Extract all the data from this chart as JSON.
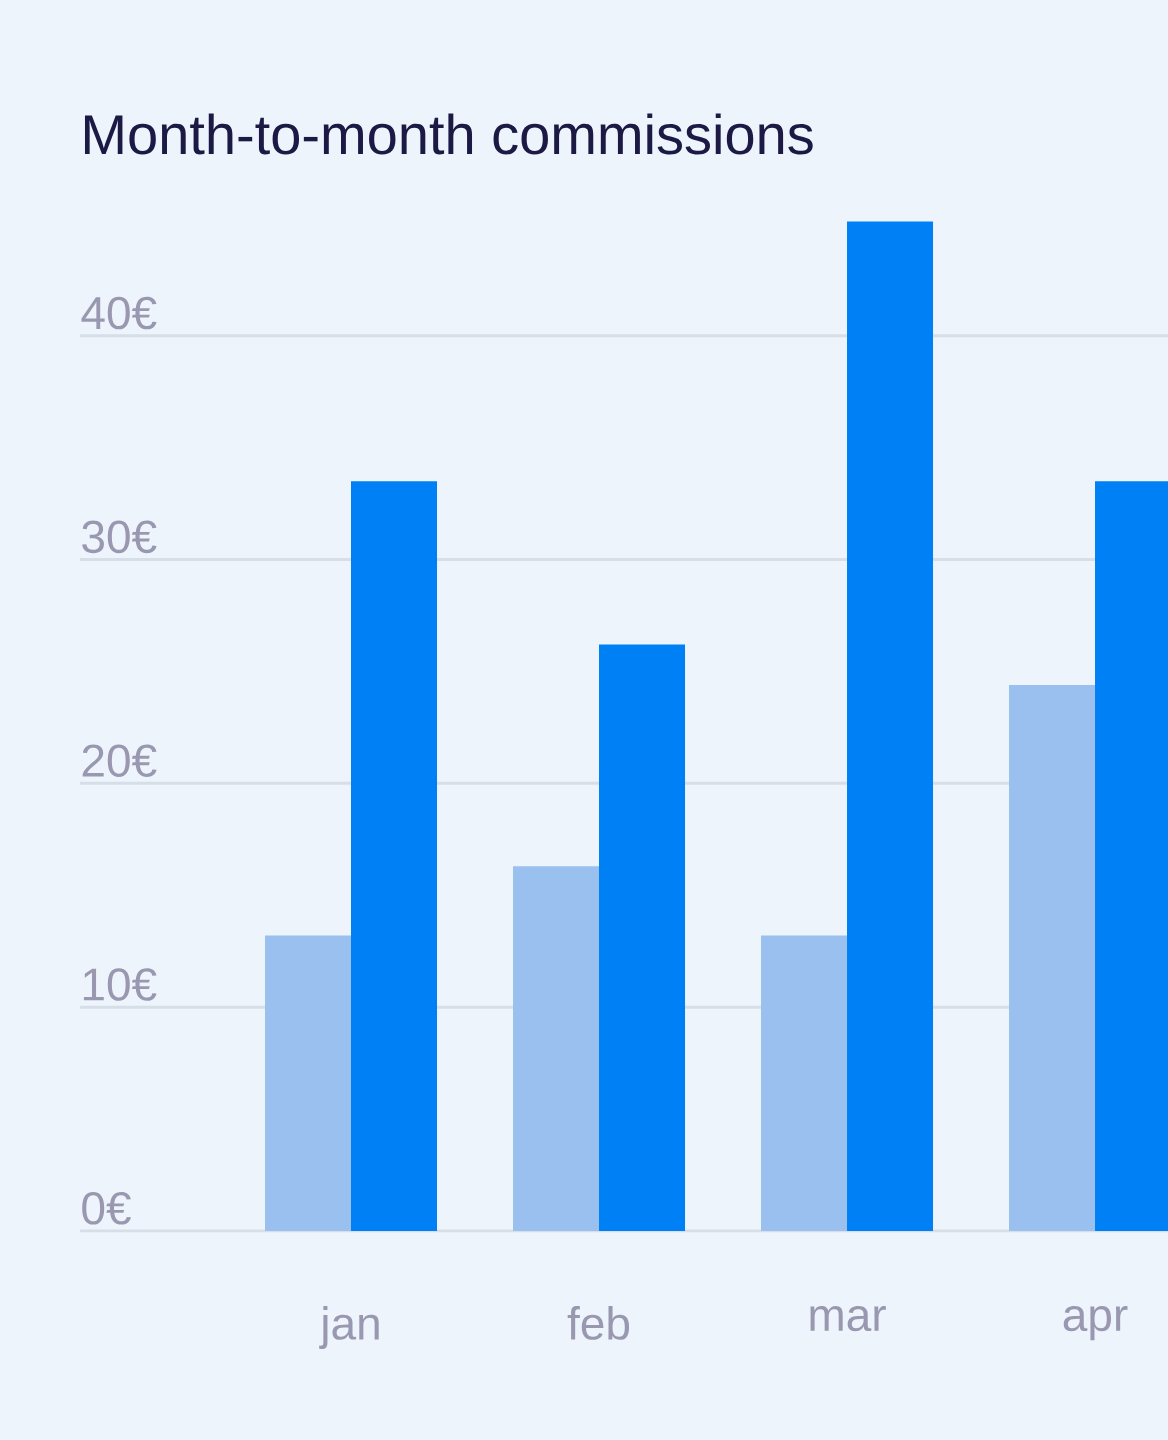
{
  "chart_data": {
    "type": "bar",
    "title": "Month-to-month commissions",
    "categories": [
      "jan",
      "feb",
      "mar",
      "apr"
    ],
    "series": [
      {
        "color": "#99c0ee",
        "values": [
          13.2,
          16.3,
          13.2,
          24.4
        ]
      },
      {
        "color": "#0080f5",
        "values": [
          33.5,
          26.2,
          45.1,
          33.5
        ]
      }
    ],
    "ylim": [
      0,
      55
    ],
    "yticks": [
      {
        "value": 0,
        "label": "0€"
      },
      {
        "value": 10,
        "label": "10€"
      },
      {
        "value": 20,
        "label": "20€"
      },
      {
        "value": 30,
        "label": "30€"
      },
      {
        "value": 40,
        "label": "40€"
      }
    ],
    "grid": "y"
  }
}
